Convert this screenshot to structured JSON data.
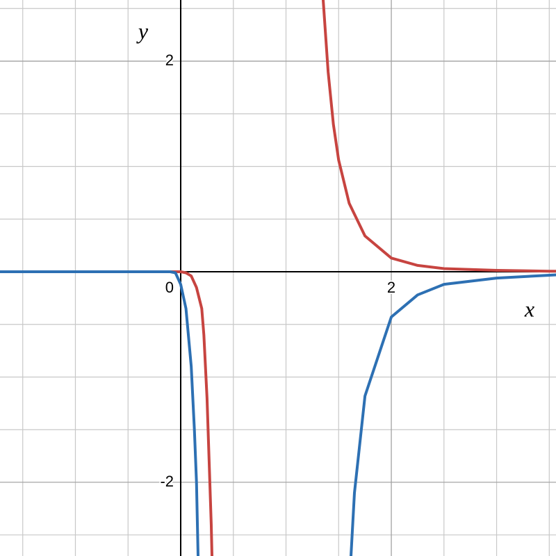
{
  "chart_data": {
    "type": "line",
    "x_label": "x",
    "y_label": "y",
    "xlim": [
      -1.716,
      3.564
    ],
    "ylim": [
      -2.7,
      2.581
    ],
    "xticks": [
      0,
      2
    ],
    "yticks": [
      -2,
      2
    ],
    "xgrid": [
      -1.5,
      -1,
      -0.5,
      0.5,
      1,
      1.5,
      2,
      2.5,
      3,
      3.5
    ],
    "ygrid": [
      -2.5,
      -2,
      -1.5,
      -1,
      -0.5,
      0.5,
      1,
      1.5,
      2,
      2.5
    ],
    "grid": true,
    "series": [
      {
        "color": "#c74440",
        "x": [
          -1.716,
          -0.5,
          -0.1,
          0,
          0.05,
          0.1,
          0.15,
          0.2,
          0.22,
          0.25,
          0.27,
          0.29,
          0.297,
          0.8,
          1.353,
          1.4,
          1.45,
          1.5,
          1.6,
          1.75,
          2,
          2.25,
          2.5,
          3,
          3.5,
          3.564
        ],
        "values": [
          0,
          0,
          0,
          0,
          -0.01,
          -0.04,
          -0.15,
          -0.35,
          -0.6,
          -1.2,
          -1.8,
          -2.4,
          -2.7,
          null,
          2.581,
          1.9,
          1.4,
          1.06,
          0.65,
          0.34,
          0.13,
          0.06,
          0.03,
          0.013,
          0.005,
          0.005
        ]
      },
      {
        "color": "#2d70b3",
        "x": [
          -1.716,
          -0.5,
          -0.1,
          -0.05,
          0,
          0.05,
          0.1,
          0.13,
          0.15,
          0.165,
          0.9,
          1.617,
          1.65,
          1.75,
          2,
          2.25,
          2.5,
          3,
          3.564
        ],
        "values": [
          0,
          0,
          0,
          -0.01,
          -0.12,
          -0.35,
          -0.9,
          -1.5,
          -2,
          -2.7,
          null,
          -2.7,
          -2.1,
          -1.18,
          -0.43,
          -0.22,
          -0.12,
          -0.06,
          -0.03
        ]
      }
    ]
  }
}
